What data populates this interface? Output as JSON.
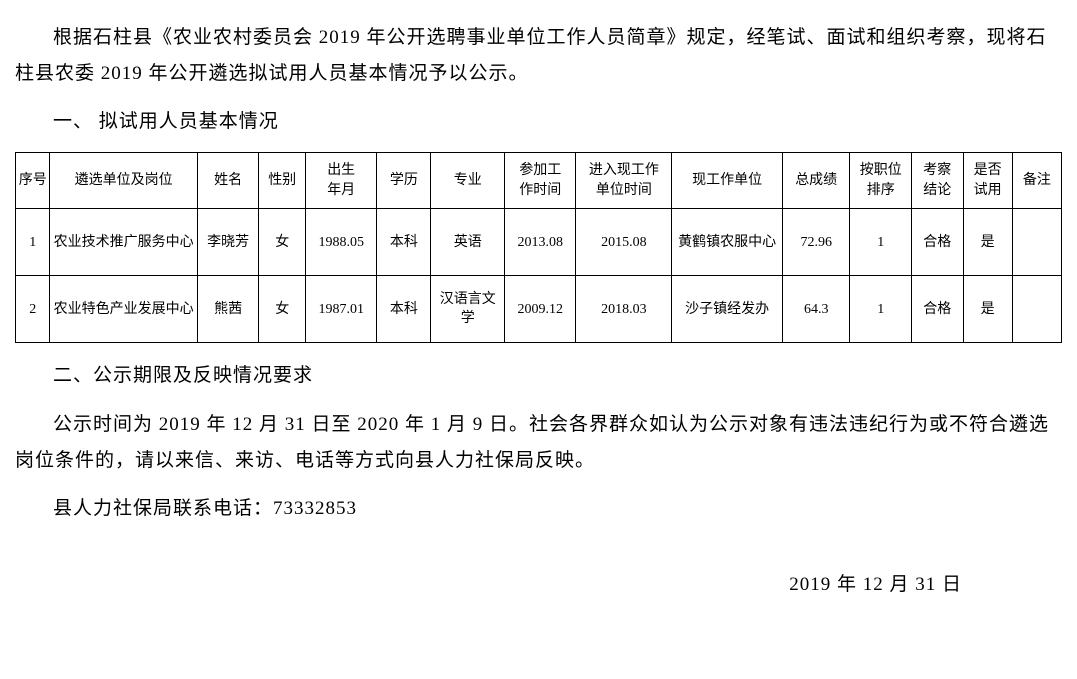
{
  "paragraph1": "根据石柱县《农业农村委员会 2019 年公开选聘事业单位工作人员简章》规定，经笔试、面试和组织考察，现将石柱县农委 2019 年公开遴选拟试用人员基本情况予以公示。",
  "section1_title": "一、 拟试用人员基本情况",
  "table": {
    "headers": [
      "序号",
      "遴选单位及岗位",
      "姓名",
      "性别",
      "出生\n年月",
      "学历",
      "专业",
      "参加工\n作时间",
      "进入现工作\n单位时间",
      "现工作单位",
      "总成绩",
      "按职位\n排序",
      "考察\n结论",
      "是否\n试用",
      "备注"
    ],
    "col_widths": [
      "28",
      "120",
      "50",
      "38",
      "58",
      "44",
      "60",
      "58",
      "78",
      "90",
      "55",
      "50",
      "42",
      "40",
      "40"
    ],
    "rows": [
      [
        "1",
        "农业技术推广服务中心",
        "李晓芳",
        "女",
        "1988.05",
        "本科",
        "英语",
        "2013.08",
        "2015.08",
        "黄鹤镇农服中心",
        "72.96",
        "1",
        "合格",
        "是",
        ""
      ],
      [
        "2",
        "农业特色产业发展中心",
        "熊茜",
        "女",
        "1987.01",
        "本科",
        "汉语言文学",
        "2009.12",
        "2018.03",
        "沙子镇经发办",
        "64.3",
        "1",
        "合格",
        "是",
        ""
      ]
    ]
  },
  "section2_title": "二、公示期限及反映情况要求",
  "paragraph2": "公示时间为 2019 年 12 月 31 日至 2020 年 1 月 9 日。社会各界群众如认为公示对象有违法违纪行为或不符合遴选岗位条件的，请以来信、来访、电话等方式向县人力社保局反映。",
  "contact_line": "县人力社保局联系电话：73332853",
  "date_line": "2019 年 12 月 31 日"
}
